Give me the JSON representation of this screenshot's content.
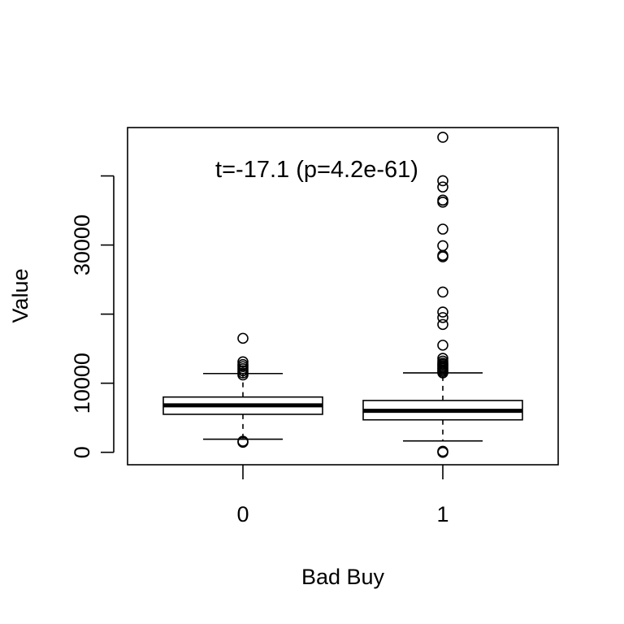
{
  "chart_data": {
    "type": "box",
    "annotation": "t=-17.1 (p=4.2e-61)",
    "xlabel": "Bad Buy",
    "ylabel": "Value",
    "categories": [
      "0",
      "1"
    ],
    "yticks": [
      0,
      10000,
      20000,
      30000,
      40000
    ],
    "ytick_labels": [
      "0",
      "10000",
      "",
      "30000",
      ""
    ],
    "ylim": [
      -1800,
      47000
    ],
    "boxes": [
      {
        "category": "0",
        "lower_whisker": 1900,
        "q1": 5500,
        "median": 6800,
        "q3": 8000,
        "upper_whisker": 11400,
        "outliers": [
          1450,
          1600,
          11200,
          11500,
          11800,
          12100,
          12400,
          12700,
          13100,
          16500
        ]
      },
      {
        "category": "1",
        "lower_whisker": 1650,
        "q1": 4700,
        "median": 6000,
        "q3": 7500,
        "upper_whisker": 11500,
        "outliers": [
          0,
          150,
          11500,
          11700,
          11900,
          12100,
          12300,
          12500,
          12700,
          12900,
          13200,
          13600,
          15500,
          18500,
          19500,
          20300,
          23200,
          28300,
          28500,
          29900,
          32300,
          36200,
          36500,
          38400,
          39300,
          45600
        ]
      }
    ],
    "colors": {
      "line": "#000000",
      "box_fill": "#ffffff",
      "background": "#ffffff"
    }
  }
}
